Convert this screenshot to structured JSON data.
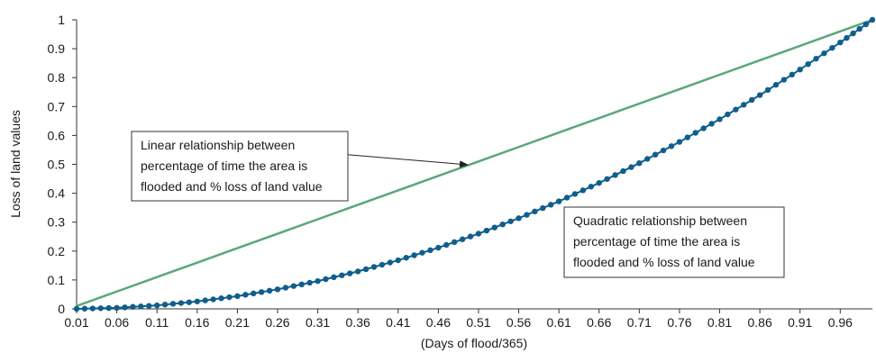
{
  "chart_data": {
    "type": "line",
    "title": "",
    "xlabel": "(Days of flood/365)",
    "ylabel": "Loss of land values",
    "xlim": [
      0.01,
      1.0
    ],
    "ylim": [
      0,
      1
    ],
    "grid": false,
    "x_tick_labels": [
      "0.01",
      "0.06",
      "0.11",
      "0.16",
      "0.21",
      "0.26",
      "0.31",
      "0.36",
      "0.41",
      "0.46",
      "0.51",
      "0.56",
      "0.61",
      "0.66",
      "0.71",
      "0.76",
      "0.81",
      "0.86",
      "0.91",
      "0.96"
    ],
    "y_tick_labels": [
      "0",
      "0.1",
      "0.2",
      "0.3",
      "0.4",
      "0.5",
      "0.6",
      "0.7",
      "0.8",
      "0.9",
      "1"
    ],
    "x": [
      0.01,
      0.06,
      0.11,
      0.16,
      0.21,
      0.26,
      0.31,
      0.36,
      0.41,
      0.46,
      0.51,
      0.56,
      0.61,
      0.66,
      0.71,
      0.76,
      0.81,
      0.86,
      0.91,
      0.96,
      1.0
    ],
    "series": [
      {
        "color": "#5aa77a",
        "style": "line",
        "values": [
          0.01,
          0.06,
          0.11,
          0.16,
          0.21,
          0.26,
          0.31,
          0.36,
          0.41,
          0.46,
          0.51,
          0.56,
          0.61,
          0.66,
          0.71,
          0.76,
          0.81,
          0.86,
          0.91,
          0.96,
          1.0
        ]
      },
      {
        "color": "#0f5e8c",
        "style": "markers",
        "values": [
          0.0001,
          0.0036,
          0.0121,
          0.0256,
          0.0441,
          0.0676,
          0.0961,
          0.1296,
          0.1681,
          0.2116,
          0.2601,
          0.3136,
          0.3721,
          0.4356,
          0.5041,
          0.5776,
          0.6561,
          0.7396,
          0.8281,
          0.9216,
          1.0
        ]
      }
    ],
    "annotations": [
      {
        "lines": [
          "Linear relationship between",
          "percentage of time the area is",
          "flooded and % loss of land value"
        ]
      },
      {
        "lines": [
          "Quadratic relationship between",
          "percentage of time the area is",
          "flooded and % loss of land value"
        ]
      }
    ]
  }
}
